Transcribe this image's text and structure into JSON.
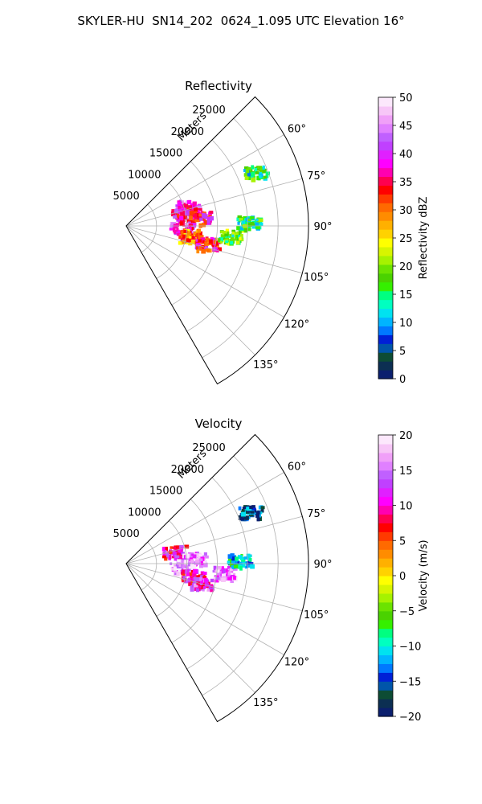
{
  "figure": {
    "suptitle": "SKYLER-HU  SN14_202  0624_1.095 UTC Elevation 16°"
  },
  "panels": [
    {
      "title": "Reflectivity",
      "range_label": "Meters",
      "range_ticks": [
        "5000",
        "10000",
        "15000",
        "20000",
        "25000"
      ],
      "azimuth_ticks": [
        "60°",
        "75°",
        "90°",
        "105°",
        "120°",
        "135°"
      ],
      "colorbar": {
        "label": "Reflectivity dBZ",
        "min": 0,
        "max": 50,
        "ticks": [
          "0",
          "5",
          "10",
          "15",
          "20",
          "25",
          "30",
          "35",
          "40",
          "45",
          "50"
        ],
        "colors": [
          "#0b1f6e",
          "#0c2f52",
          "#0d4c34",
          "#0055aa",
          "#0020d6",
          "#0078ff",
          "#00b4ff",
          "#00e2f0",
          "#00ffc0",
          "#00ff80",
          "#35f000",
          "#4ad200",
          "#6be300",
          "#a6f200",
          "#d7f500",
          "#ffff00",
          "#ffd200",
          "#ffb000",
          "#ff8c00",
          "#ff6a00",
          "#ff3a00",
          "#ff0000",
          "#ff0050",
          "#ff00b0",
          "#ff00ff",
          "#e020ff",
          "#c040ff",
          "#c060ff",
          "#e080ff",
          "#f0a0f8",
          "#f7c6f7",
          "#fce8fc"
        ]
      }
    },
    {
      "title": "Velocity",
      "range_label": "Meters",
      "range_ticks": [
        "5000",
        "10000",
        "15000",
        "20000",
        "25000"
      ],
      "azimuth_ticks": [
        "60°",
        "75°",
        "90°",
        "105°",
        "120°",
        "135°"
      ],
      "colorbar": {
        "label": "Velocity (m/s)",
        "min": -20,
        "max": 20,
        "ticks": [
          "−20",
          "−15",
          "−10",
          "−5",
          "0",
          "5",
          "10",
          "15",
          "20"
        ],
        "colors": [
          "#0b1f6e",
          "#0c2f52",
          "#0d4c34",
          "#0055aa",
          "#0020d6",
          "#0078ff",
          "#00b4ff",
          "#00e2f0",
          "#00ffc0",
          "#00ff80",
          "#35f000",
          "#4ad200",
          "#6be300",
          "#a6f200",
          "#d7f500",
          "#ffff00",
          "#ffd200",
          "#ffb000",
          "#ff8c00",
          "#ff6a00",
          "#ff3a00",
          "#ff0000",
          "#ff0050",
          "#ff00b0",
          "#ff00ff",
          "#e020ff",
          "#c040ff",
          "#c060ff",
          "#e080ff",
          "#f0a0f8",
          "#f7c6f7",
          "#fce8fc"
        ]
      }
    }
  ],
  "chart_data": [
    {
      "type": "polar sector (radar PPI)",
      "title": "Reflectivity",
      "theta_range_deg": [
        45,
        150
      ],
      "radial_range_m": [
        0,
        30000
      ],
      "radial_ticks": [
        5000,
        10000,
        15000,
        20000,
        25000
      ],
      "theta_ticks_deg": [
        60,
        75,
        90,
        105,
        120,
        135
      ],
      "colorbar_range": [
        0,
        50
      ],
      "units": "dBZ",
      "grid": true,
      "echo_cells": [
        {
          "az": 72,
          "r": 10500,
          "dbz": 40
        },
        {
          "az": 78,
          "r": 9500,
          "dbz": 38
        },
        {
          "az": 83,
          "r": 12000,
          "dbz": 36
        },
        {
          "az": 92,
          "r": 9000,
          "dbz": 40
        },
        {
          "az": 98,
          "r": 10500,
          "dbz": 30
        },
        {
          "az": 102,
          "r": 13500,
          "dbz": 35
        },
        {
          "az": 95,
          "r": 17000,
          "dbz": 18
        },
        {
          "az": 88,
          "r": 20000,
          "dbz": 15
        },
        {
          "az": 67,
          "r": 23000,
          "dbz": 15
        }
      ]
    },
    {
      "type": "polar sector (radar PPI)",
      "title": "Velocity",
      "theta_range_deg": [
        45,
        150
      ],
      "radial_range_m": [
        0,
        30000
      ],
      "radial_ticks": [
        5000,
        10000,
        15000,
        20000,
        25000
      ],
      "theta_ticks_deg": [
        60,
        75,
        90,
        105,
        120,
        135
      ],
      "colorbar_range": [
        -20,
        20
      ],
      "units": "m/s",
      "grid": true,
      "echo_cells": [
        {
          "az": 75,
          "r": 8000,
          "vel": 10
        },
        {
          "az": 85,
          "r": 11000,
          "vel": 15
        },
        {
          "az": 92,
          "r": 9000,
          "vel": 17
        },
        {
          "az": 100,
          "r": 11000,
          "vel": 10
        },
        {
          "az": 105,
          "r": 12500,
          "vel": 12
        },
        {
          "az": 95,
          "r": 16000,
          "vel": 15
        },
        {
          "az": 88,
          "r": 18500,
          "vel": -10
        },
        {
          "az": 67,
          "r": 22000,
          "vel": -15
        }
      ]
    }
  ]
}
